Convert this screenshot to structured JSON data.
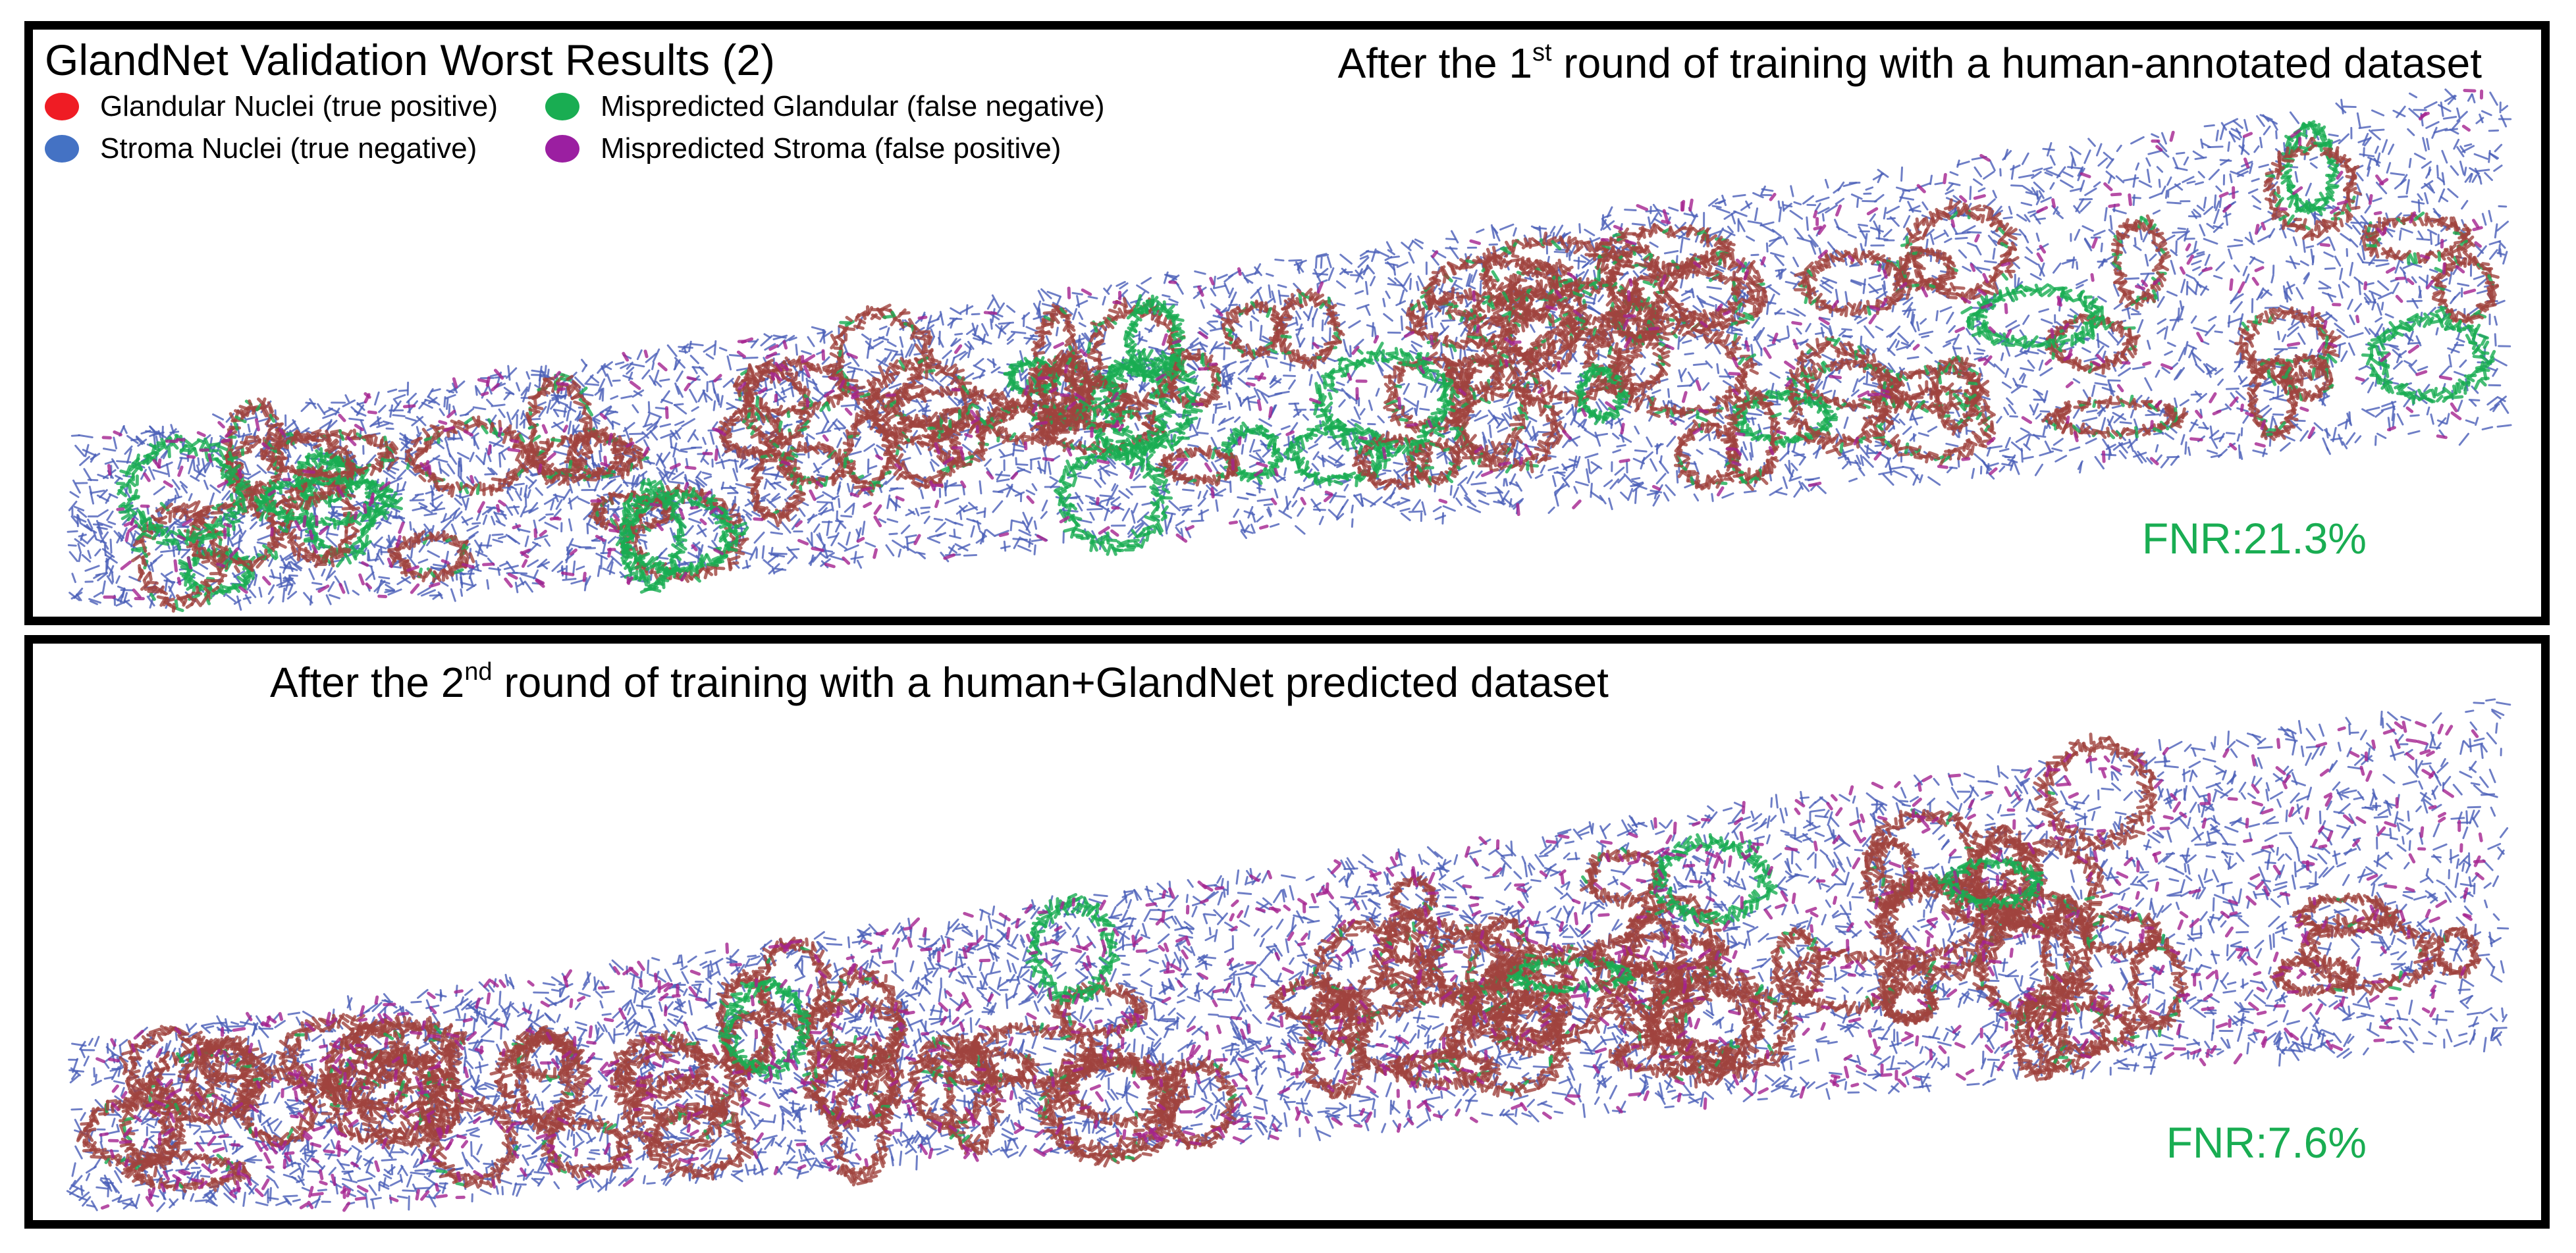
{
  "figure_title": "GlandNet Validation Worst Results (2)",
  "legend": [
    {
      "label": "Glandular Nuclei (true positive)",
      "color": "#ef1c24",
      "icon": "red-ellipse"
    },
    {
      "label": "Mispredicted Glandular (false negative)",
      "color": "#19ad52",
      "icon": "green-ellipse"
    },
    {
      "label": "Stroma Nuclei (true negative)",
      "color": "#4472c4",
      "icon": "blue-ellipse"
    },
    {
      "label": "Mispredicted Stroma (false positive)",
      "color": "#9b1fa1",
      "icon": "purple-ellipse"
    }
  ],
  "panels": [
    {
      "title_pre": "After the 1",
      "title_sup": "st",
      "title_post": " round of training with a human-annotated dataset",
      "fnr": "FNR:21.3%",
      "green_ratio": 0.22,
      "purple_ratio": 0.04
    },
    {
      "title_pre": "After the 2",
      "title_sup": "nd",
      "title_post": " round of training with a human+GlandNet predicted dataset",
      "fnr": "FNR:7.6%",
      "green_ratio": 0.07,
      "purple_ratio": 0.09
    }
  ],
  "colors": {
    "gland": "#a0433e",
    "stroma": "#4a5fb8",
    "false_negative": "#19ad52",
    "false_positive": "#a5238f",
    "fnr_text": "#19ad52"
  }
}
